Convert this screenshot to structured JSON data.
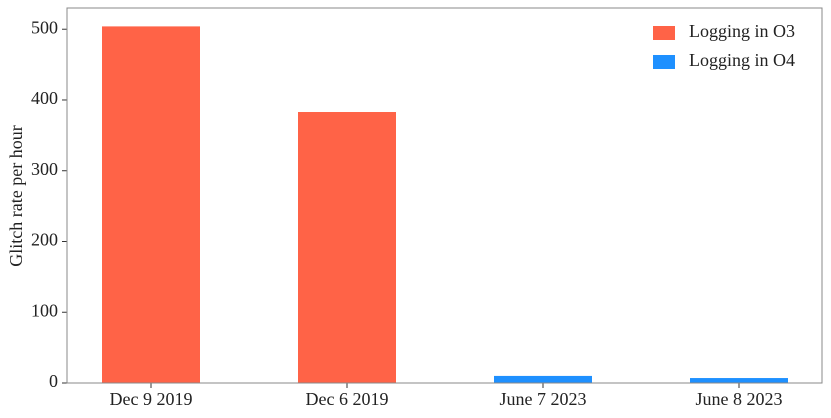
{
  "chart_data": {
    "type": "bar",
    "ylabel": "Glitch rate per hour",
    "categories": [
      "Dec 9 2019",
      "Dec 6 2019",
      "June 7 2023",
      "June 8 2023"
    ],
    "series": [
      {
        "name": "Logging in O3",
        "color": "#ff6347",
        "values": [
          504,
          383,
          null,
          null
        ]
      },
      {
        "name": "Logging in O4",
        "color": "#1e90ff",
        "values": [
          null,
          null,
          10,
          7
        ]
      }
    ],
    "ylim": [
      0,
      530
    ],
    "yticks": [
      0,
      100,
      200,
      300,
      400,
      500
    ],
    "legend": "upper right"
  }
}
